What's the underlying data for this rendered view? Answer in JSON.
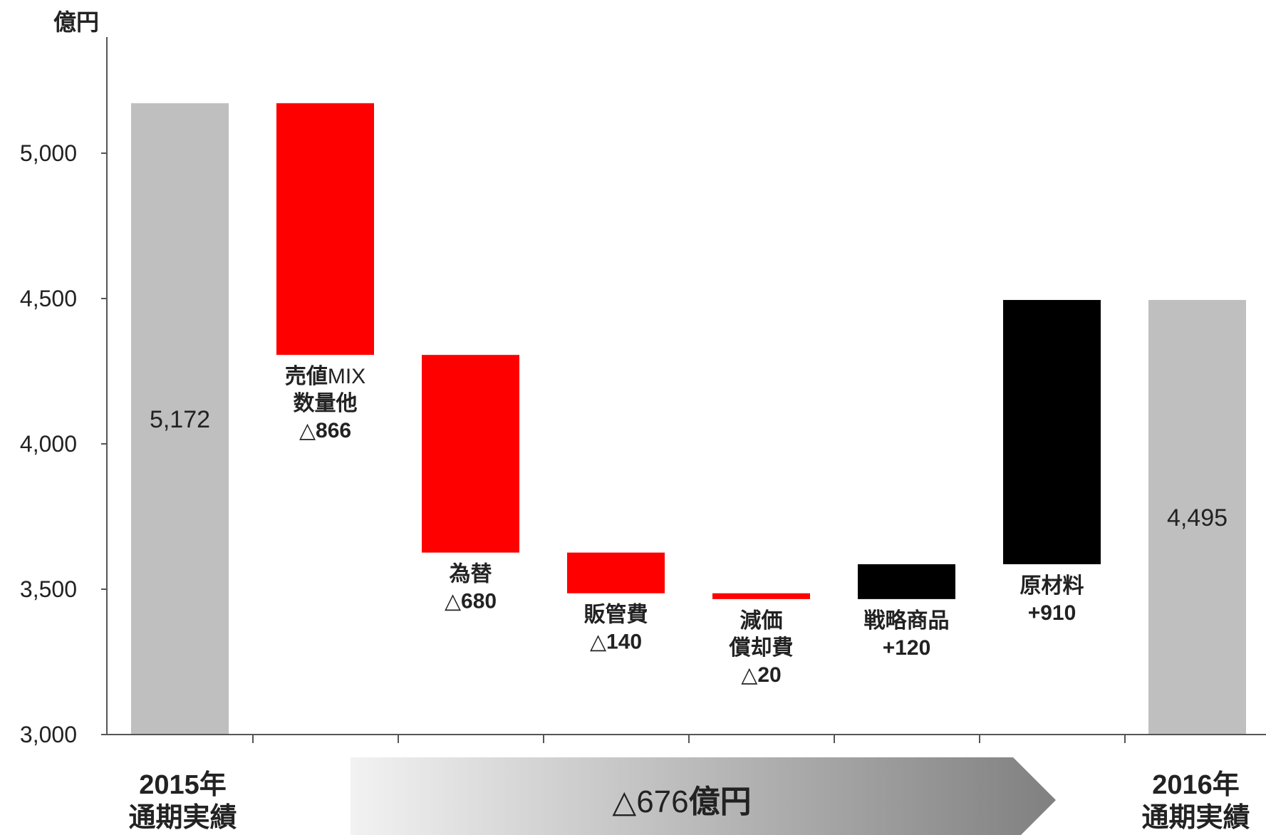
{
  "chart_data": {
    "type": "bar",
    "subtype": "waterfall",
    "ylabel": "億円",
    "ylim": [
      3000,
      5000
    ],
    "yticks": [
      "3,000",
      "3,500",
      "4,000",
      "4,500",
      "5,000"
    ],
    "ytick_values": [
      3000,
      3500,
      4000,
      4500,
      5000
    ],
    "grid": false,
    "colors": {
      "total": "#bfbfbf",
      "decrease": "#ff0000",
      "increase": "#000000",
      "arrow_start": "#f2f2f2",
      "arrow_end": "#808080"
    },
    "bars": [
      {
        "kind": "total",
        "start": 3000,
        "end": 5172,
        "label_lines": [],
        "value_label": "5,172"
      },
      {
        "kind": "decrease",
        "start": 5172,
        "end": 4306,
        "label_lines": [
          [
            "売値",
            "MIX"
          ],
          [
            "数量他"
          ],
          [
            "△866"
          ]
        ],
        "value_label": ""
      },
      {
        "kind": "decrease",
        "start": 4306,
        "end": 3626,
        "label_lines": [
          [
            "為替"
          ],
          [
            "△680"
          ]
        ],
        "value_label": ""
      },
      {
        "kind": "decrease",
        "start": 3626,
        "end": 3486,
        "label_lines": [
          [
            "販管費"
          ],
          [
            "△140"
          ]
        ],
        "value_label": ""
      },
      {
        "kind": "decrease",
        "start": 3486,
        "end": 3466,
        "label_lines": [
          [
            "減価"
          ],
          [
            "償却費"
          ],
          [
            "△20"
          ]
        ],
        "value_label": ""
      },
      {
        "kind": "increase",
        "start": 3466,
        "end": 3586,
        "label_lines": [
          [
            "戦略商品"
          ],
          [
            "+120"
          ]
        ],
        "value_label": ""
      },
      {
        "kind": "increase",
        "start": 3586,
        "end": 4495,
        "label_lines": [
          [
            "原材料"
          ],
          [
            "+910"
          ]
        ],
        "value_label": ""
      },
      {
        "kind": "total",
        "start": 3000,
        "end": 4495,
        "label_lines": [],
        "value_label": "4,495"
      }
    ],
    "period_start": [
      "2015年",
      "通期実績"
    ],
    "period_end": [
      "2016年",
      "通期実績"
    ],
    "total_change": {
      "delta": "△676",
      "unit": "億円"
    }
  }
}
